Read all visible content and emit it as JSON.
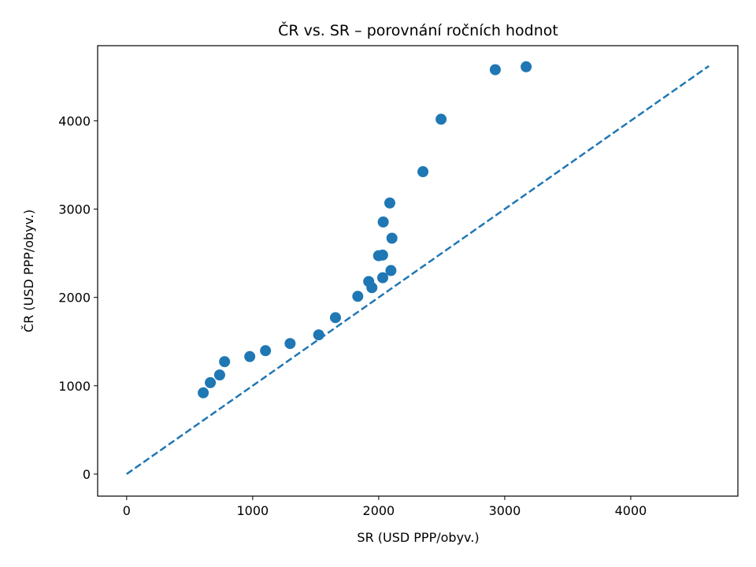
{
  "chart_data": {
    "type": "scatter",
    "title": "ČR vs. SR – porovnání ročních hodnot",
    "xlabel": "SR (USD PPP/obyv.)",
    "ylabel": "ČR (USD PPP/obyv.)",
    "xlim": [
      -230,
      4850
    ],
    "ylim": [
      -250,
      4850
    ],
    "xticks": [
      0,
      1000,
      2000,
      3000,
      4000
    ],
    "yticks": [
      0,
      1000,
      2000,
      3000,
      4000
    ],
    "grid": false,
    "point_color": "#1f77b4",
    "reference_line": {
      "style": "dashed",
      "color": "#1f77b4",
      "from": [
        0,
        0
      ],
      "to": [
        4620,
        4620
      ]
    },
    "points": [
      {
        "x": 608,
        "y": 920
      },
      {
        "x": 664,
        "y": 1035
      },
      {
        "x": 738,
        "y": 1122
      },
      {
        "x": 777,
        "y": 1272
      },
      {
        "x": 977,
        "y": 1330
      },
      {
        "x": 1102,
        "y": 1397
      },
      {
        "x": 1297,
        "y": 1478
      },
      {
        "x": 1524,
        "y": 1576
      },
      {
        "x": 1657,
        "y": 1771
      },
      {
        "x": 1834,
        "y": 2012
      },
      {
        "x": 1921,
        "y": 2180
      },
      {
        "x": 1946,
        "y": 2110
      },
      {
        "x": 1999,
        "y": 2472
      },
      {
        "x": 2031,
        "y": 2479
      },
      {
        "x": 2032,
        "y": 2223
      },
      {
        "x": 2036,
        "y": 2854
      },
      {
        "x": 2088,
        "y": 3069
      },
      {
        "x": 2097,
        "y": 2304
      },
      {
        "x": 2105,
        "y": 2670
      },
      {
        "x": 2351,
        "y": 3423
      },
      {
        "x": 2495,
        "y": 4017
      },
      {
        "x": 2925,
        "y": 4578
      },
      {
        "x": 3170,
        "y": 4611
      }
    ]
  }
}
